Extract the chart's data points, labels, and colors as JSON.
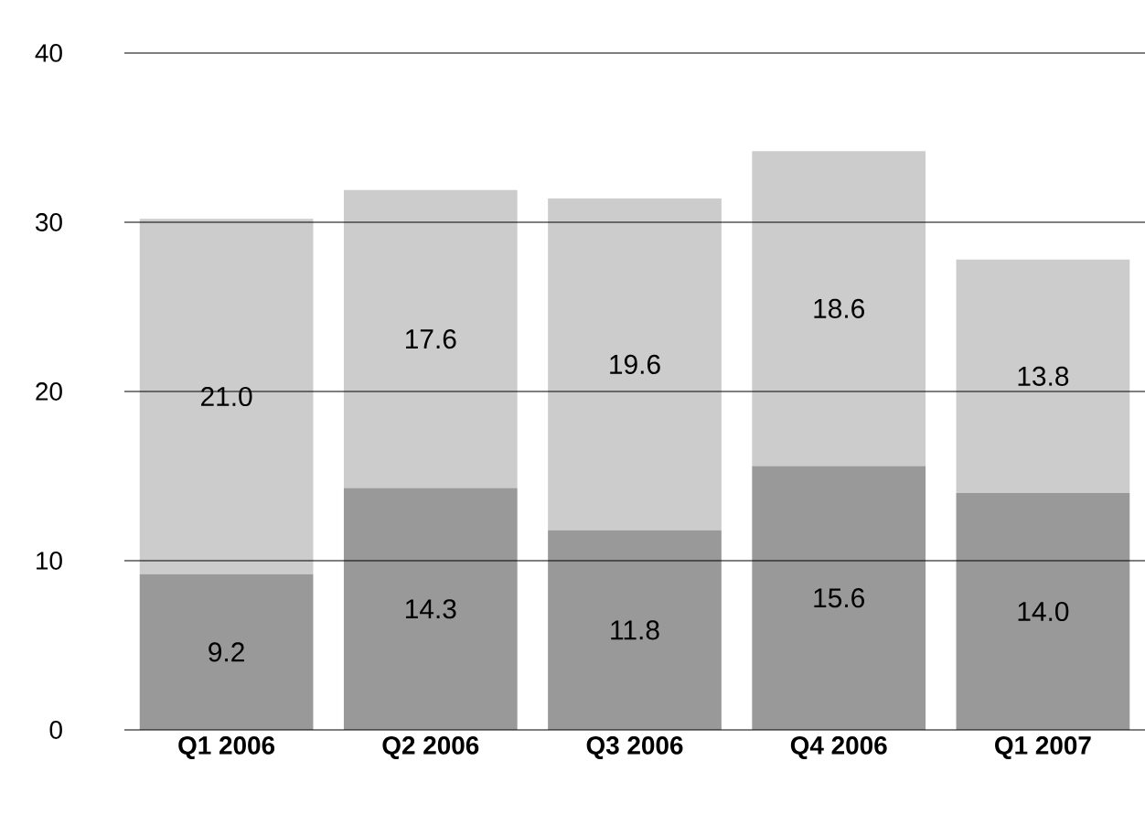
{
  "chart_data": {
    "type": "bar",
    "stacked": true,
    "categories": [
      "Q1 2006",
      "Q2 2006",
      "Q3 2006",
      "Q4 2006",
      "Q1 2007"
    ],
    "series": [
      {
        "color": "#999999",
        "values": [
          9.2,
          14.3,
          11.8,
          15.6,
          14.0
        ],
        "value_labels": [
          "9.2",
          "14.3",
          "11.8",
          "15.6",
          "14.0"
        ]
      },
      {
        "color": "#cccccc",
        "values": [
          21.0,
          17.6,
          19.6,
          18.6,
          13.8
        ],
        "value_labels": [
          "21.0",
          "17.6",
          "19.6",
          "18.6",
          "13.8"
        ]
      }
    ],
    "ylim": [
      0,
      40
    ],
    "yticks": [
      0,
      10,
      20,
      30,
      40
    ],
    "grid": "y"
  }
}
